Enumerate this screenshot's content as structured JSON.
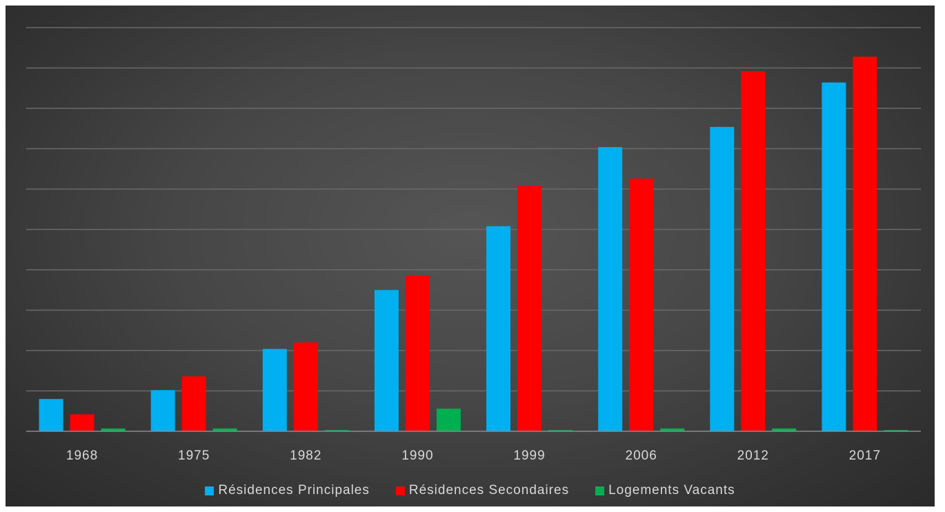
{
  "chart_data": {
    "type": "bar",
    "categories": [
      "1968",
      "1975",
      "1982",
      "1990",
      "1999",
      "2006",
      "2012",
      "2017"
    ],
    "series": [
      {
        "name": "Résidences Principales",
        "color": "#00b0f0",
        "values": [
          400,
          510,
          1020,
          1750,
          2540,
          3520,
          3770,
          4320
        ]
      },
      {
        "name": "Résidences Secondaires",
        "color": "#ff0000",
        "values": [
          210,
          680,
          1100,
          1930,
          3040,
          3130,
          4460,
          4640
        ]
      },
      {
        "name": "Logements Vacants",
        "color": "#00b050",
        "values": [
          35,
          35,
          15,
          280,
          15,
          35,
          35,
          15
        ]
      }
    ],
    "ylim": [
      0,
      5000
    ],
    "grid": true,
    "legend_position": "bottom"
  }
}
